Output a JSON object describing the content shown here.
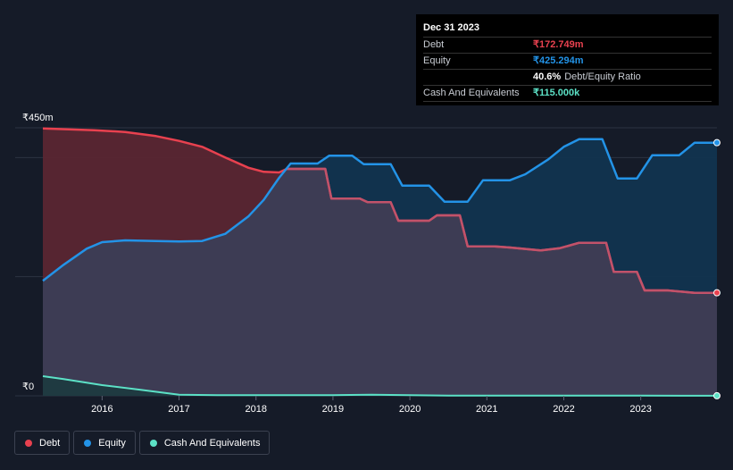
{
  "chart_data": {
    "type": "area",
    "title": "",
    "xlabel": "",
    "ylabel": "",
    "ylim": [
      0,
      450
    ],
    "xlim": [
      2015.23,
      2023.99
    ],
    "y_tick_labels": {
      "top": "₹450m",
      "bottom": "₹0"
    },
    "x_ticks": [
      {
        "value": 2016,
        "label": "2016"
      },
      {
        "value": 2017,
        "label": "2017"
      },
      {
        "value": 2018,
        "label": "2018"
      },
      {
        "value": 2019,
        "label": "2019"
      },
      {
        "value": 2020,
        "label": "2020"
      },
      {
        "value": 2021,
        "label": "2021"
      },
      {
        "value": 2022,
        "label": "2022"
      },
      {
        "value": 2023,
        "label": "2023"
      }
    ],
    "gridlines_y": [
      0,
      200,
      400,
      450
    ],
    "series": [
      {
        "name": "Debt",
        "color": "#e8414f",
        "fill": "#5a2631",
        "points": [
          [
            2015.23,
            449
          ],
          [
            2015.9,
            446
          ],
          [
            2016.3,
            443
          ],
          [
            2016.7,
            436
          ],
          [
            2017.0,
            428
          ],
          [
            2017.3,
            418
          ],
          [
            2017.6,
            400
          ],
          [
            2017.9,
            383
          ],
          [
            2018.1,
            376
          ],
          [
            2018.3,
            375
          ],
          [
            2018.4,
            381
          ],
          [
            2018.6,
            381
          ],
          [
            2018.9,
            381
          ],
          [
            2018.98,
            331
          ],
          [
            2019.35,
            331
          ],
          [
            2019.45,
            325
          ],
          [
            2019.75,
            325
          ],
          [
            2019.85,
            294
          ],
          [
            2020.25,
            294
          ],
          [
            2020.35,
            303
          ],
          [
            2020.65,
            303
          ],
          [
            2020.75,
            251
          ],
          [
            2021.1,
            251
          ],
          [
            2021.3,
            249
          ],
          [
            2021.7,
            244
          ],
          [
            2021.95,
            248
          ],
          [
            2022.2,
            257
          ],
          [
            2022.55,
            257
          ],
          [
            2022.65,
            208
          ],
          [
            2022.95,
            208
          ],
          [
            2023.05,
            177
          ],
          [
            2023.35,
            177
          ],
          [
            2023.7,
            173
          ],
          [
            2023.99,
            173
          ]
        ]
      },
      {
        "name": "Equity",
        "color": "#2393e7",
        "fill": "#11344f",
        "points": [
          [
            2015.23,
            193
          ],
          [
            2015.5,
            220
          ],
          [
            2015.8,
            247
          ],
          [
            2016.0,
            258
          ],
          [
            2016.3,
            261
          ],
          [
            2016.7,
            260
          ],
          [
            2017.0,
            259
          ],
          [
            2017.3,
            260
          ],
          [
            2017.6,
            272
          ],
          [
            2017.9,
            301
          ],
          [
            2018.1,
            329
          ],
          [
            2018.3,
            366
          ],
          [
            2018.45,
            390
          ],
          [
            2018.55,
            390
          ],
          [
            2018.8,
            390
          ],
          [
            2018.95,
            403
          ],
          [
            2019.25,
            403
          ],
          [
            2019.4,
            389
          ],
          [
            2019.75,
            389
          ],
          [
            2019.9,
            353
          ],
          [
            2020.25,
            353
          ],
          [
            2020.45,
            326
          ],
          [
            2020.75,
            326
          ],
          [
            2020.95,
            362
          ],
          [
            2021.3,
            362
          ],
          [
            2021.5,
            372
          ],
          [
            2021.8,
            397
          ],
          [
            2022.0,
            418
          ],
          [
            2022.2,
            431
          ],
          [
            2022.5,
            431
          ],
          [
            2022.7,
            365
          ],
          [
            2022.95,
            365
          ],
          [
            2023.15,
            404
          ],
          [
            2023.5,
            404
          ],
          [
            2023.7,
            425
          ],
          [
            2023.99,
            425
          ]
        ]
      },
      {
        "name": "Cash And Equivalents",
        "color": "#5ce1c6",
        "fill": "#1c3a3f",
        "points": [
          [
            2015.23,
            33
          ],
          [
            2015.5,
            28
          ],
          [
            2016.0,
            18
          ],
          [
            2016.5,
            10
          ],
          [
            2017.0,
            2
          ],
          [
            2017.5,
            1
          ],
          [
            2018.0,
            1
          ],
          [
            2018.5,
            1
          ],
          [
            2019.0,
            1
          ],
          [
            2019.5,
            2
          ],
          [
            2020.0,
            1
          ],
          [
            2020.5,
            0.5
          ],
          [
            2021.0,
            0.5
          ],
          [
            2022.0,
            0.5
          ],
          [
            2023.0,
            0.3
          ],
          [
            2023.99,
            0.1
          ]
        ]
      }
    ]
  },
  "tooltip": {
    "date": "Dec 31 2023",
    "debt_label": "Debt",
    "debt_value": "₹172.749m",
    "equity_label": "Equity",
    "equity_value": "₹425.294m",
    "ratio_value": "40.6%",
    "ratio_label": "Debt/Equity Ratio",
    "cash_label": "Cash And Equivalents",
    "cash_value": "₹115.000k"
  },
  "legend": [
    {
      "label": "Debt",
      "color": "#e8414f"
    },
    {
      "label": "Equity",
      "color": "#2393e7"
    },
    {
      "label": "Cash And Equivalents",
      "color": "#5ce1c6"
    }
  ],
  "colors": {
    "background": "#151b28",
    "debt": "#e8414f",
    "equity": "#2393e7",
    "cash": "#5ce1c6",
    "overlap": "#3d3c54"
  }
}
